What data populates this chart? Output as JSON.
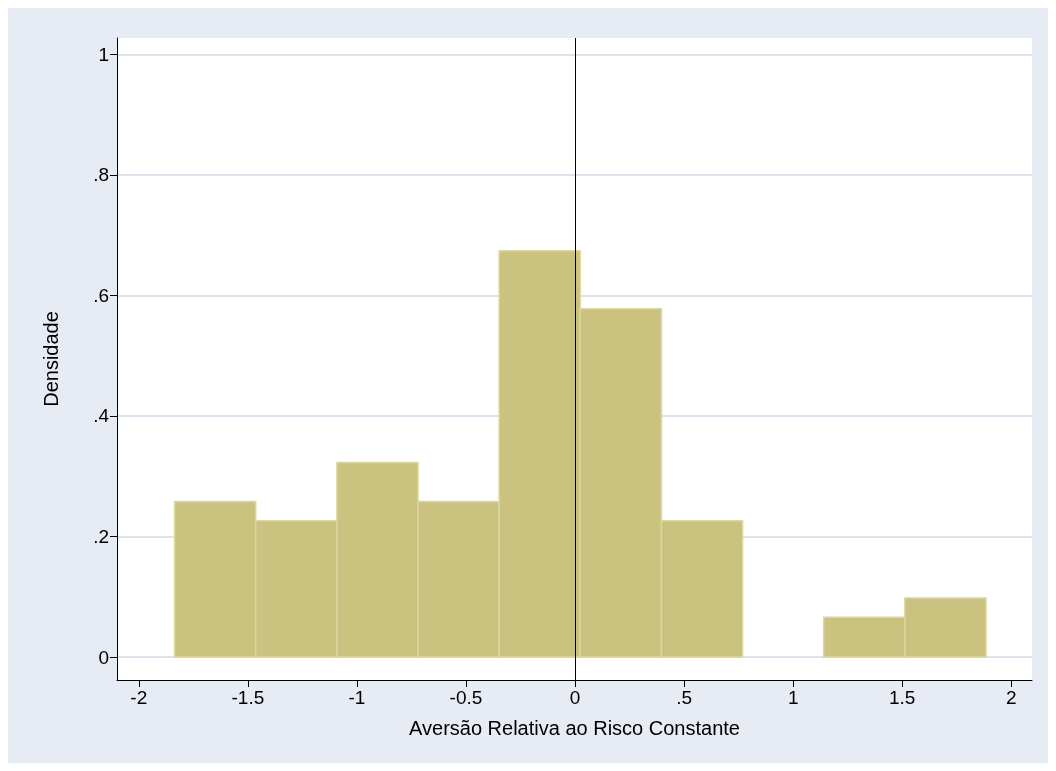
{
  "chart_data": {
    "type": "histogram",
    "xlabel": "Aversão Relativa ao Risco Constante",
    "ylabel": "Densidade",
    "bins": [
      -1.836,
      -1.464,
      -1.092,
      -0.72,
      -0.348,
      0.024,
      0.396,
      0.768,
      1.14,
      1.512,
      1.884
    ],
    "values": [
      0.258,
      0.226,
      0.323,
      0.258,
      0.674,
      0.578,
      0.226,
      0,
      0.066,
      0.098
    ],
    "color": "#cbc27f",
    "xlim": [
      -2.1,
      2.095
    ],
    "xticks": [
      -2,
      -1.5,
      -1,
      -0.5,
      0,
      {
        "value": 0.5,
        "label": ".5"
      },
      1,
      1.5,
      2
    ],
    "ylim": [
      -0.038,
      1.027
    ],
    "yticks": [
      0,
      {
        "value": 0.2,
        "label": ".2"
      },
      {
        "value": 0.4,
        "label": ".4"
      },
      {
        "value": 0.6,
        "label": ".6"
      },
      {
        "value": 0.8,
        "label": ".8"
      },
      1
    ],
    "ref_lines": [
      {
        "axis": "x",
        "value": 0,
        "color": "#000000"
      }
    ],
    "grid": "y"
  }
}
